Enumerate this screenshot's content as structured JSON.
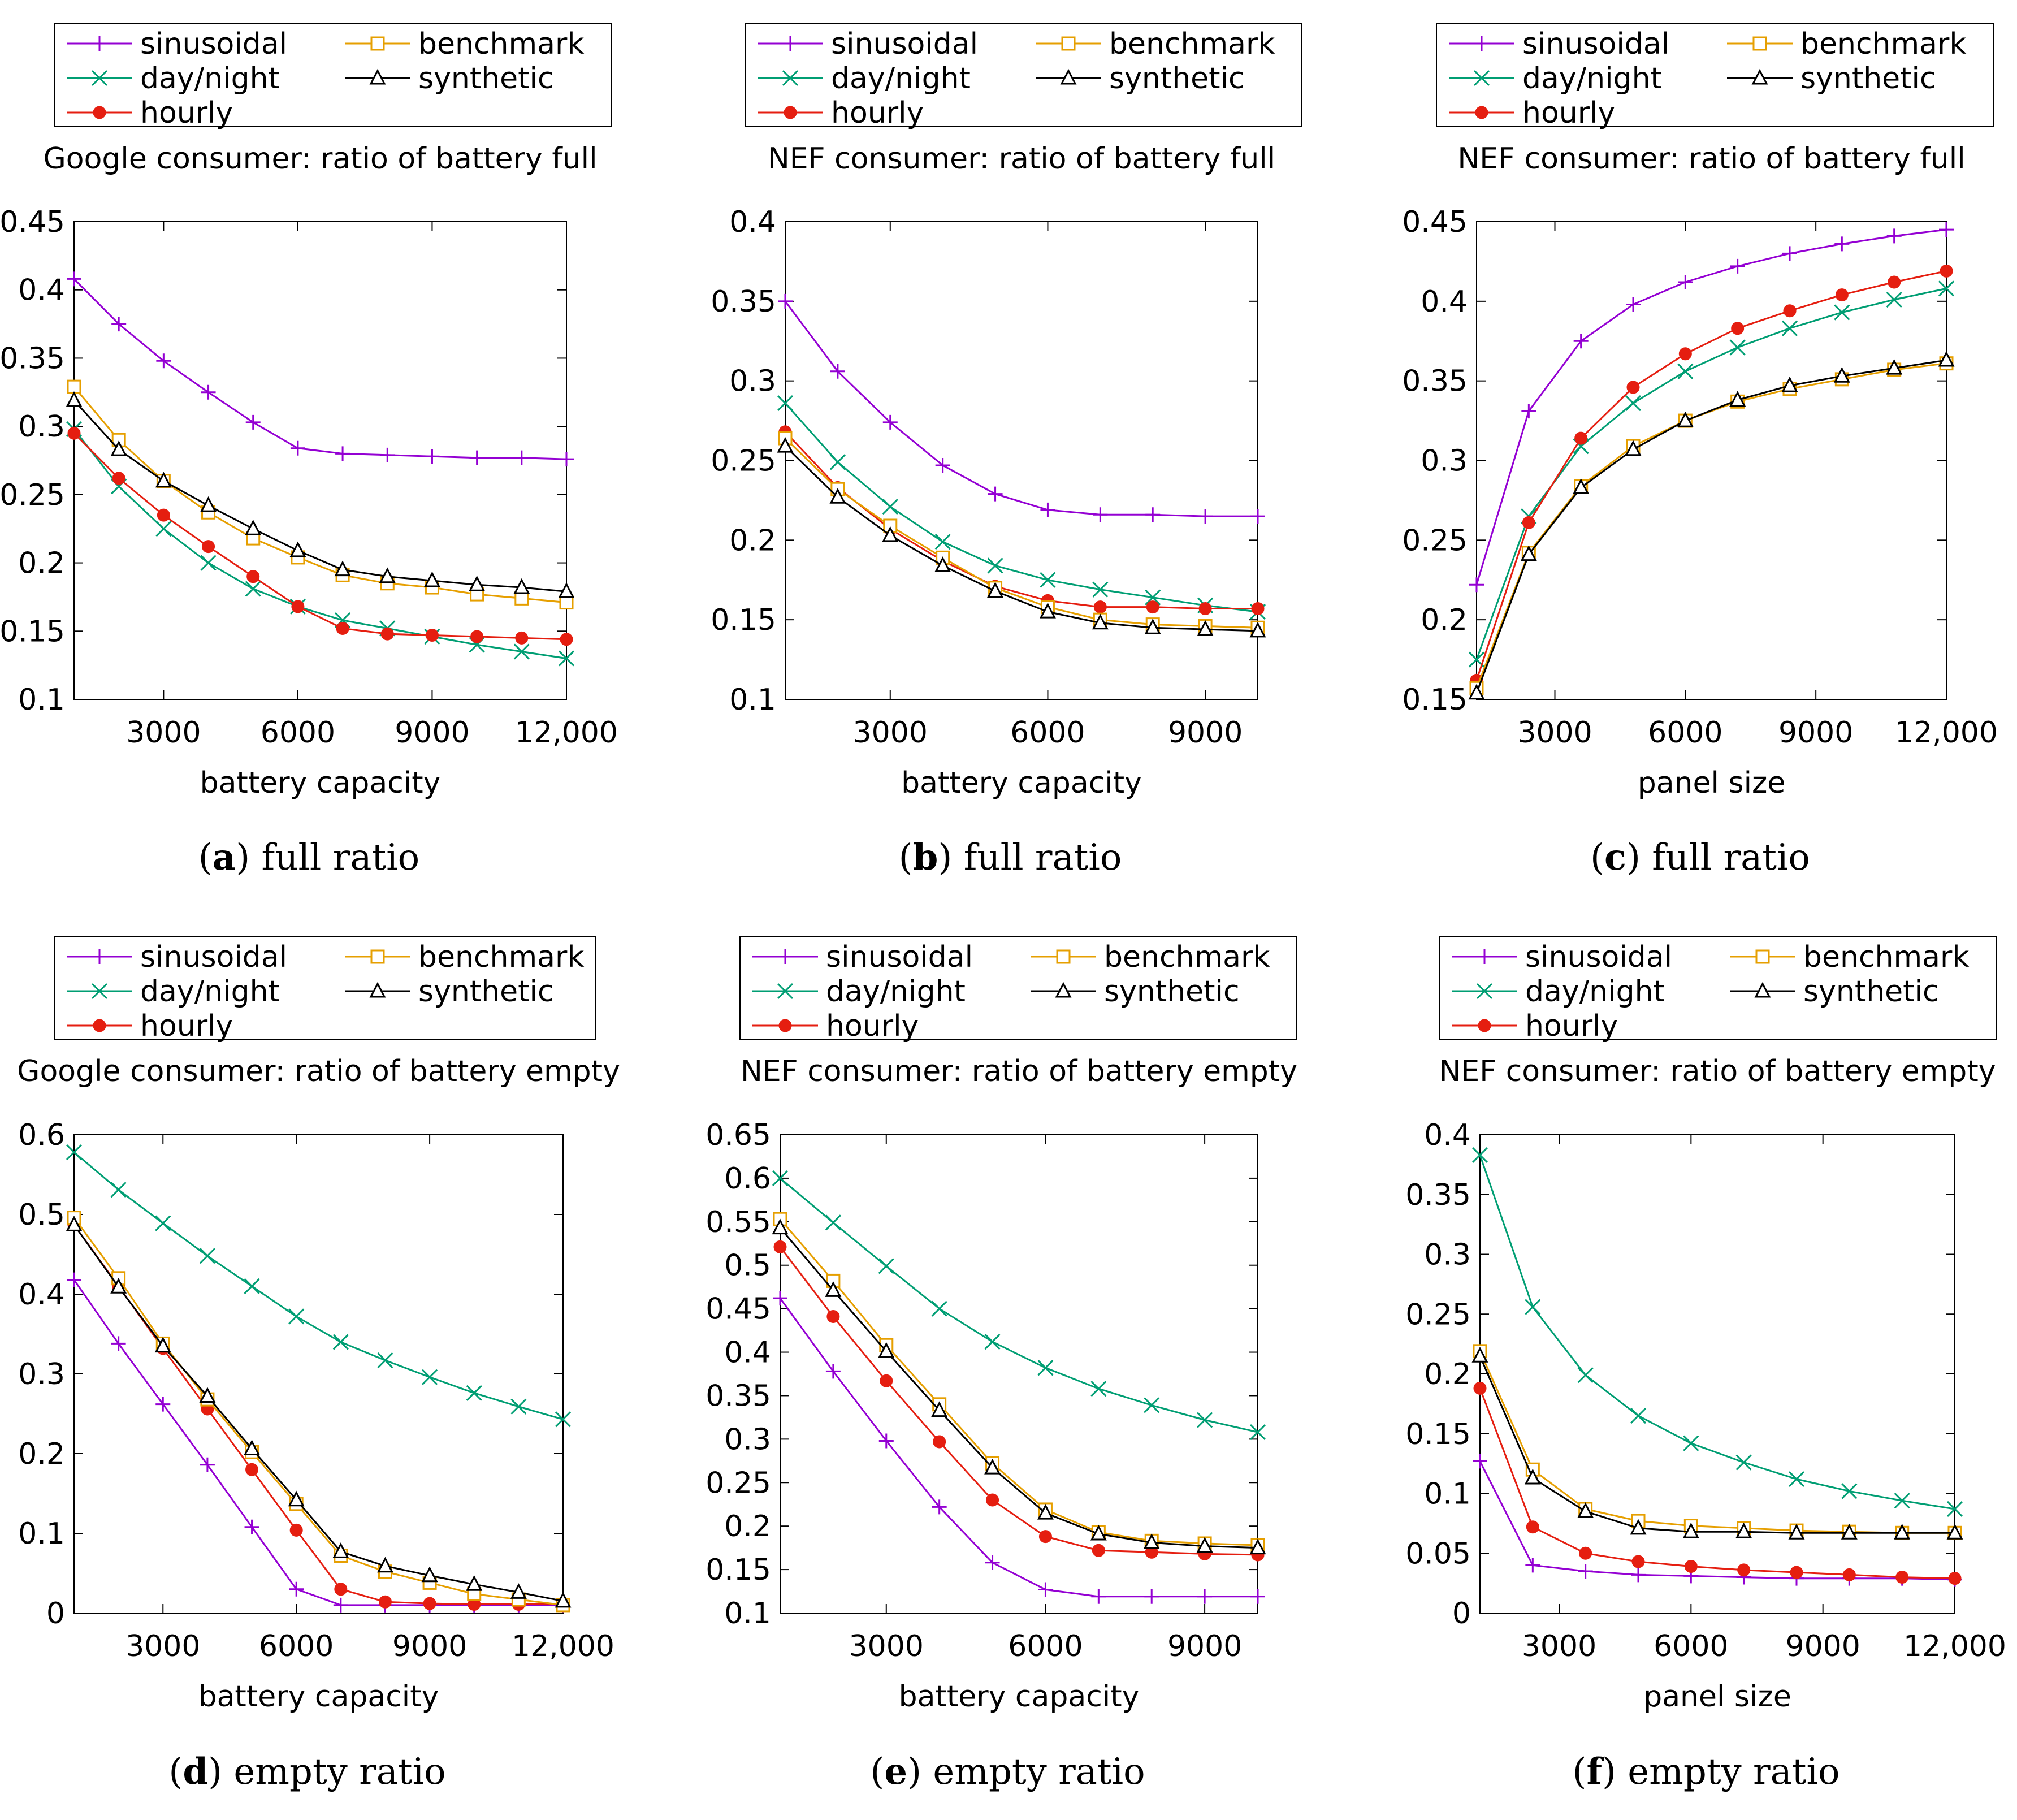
{
  "colors": {
    "sinusoidal": "#9400d3",
    "day/night": "#009e73",
    "hourly": "#e51e10",
    "benchmark": "#e69f00",
    "synthetic": "#000000"
  },
  "legend_order": [
    "sinusoidal",
    "benchmark",
    "day/night",
    "synthetic",
    "hourly"
  ],
  "chart_data": [
    {
      "type": "line",
      "title": "Google consumer: ratio of battery full",
      "xlabel": "battery capacity",
      "ylabel": "",
      "xlim": [
        1000,
        12000
      ],
      "ylim": [
        0.1,
        0.45
      ],
      "xticks": [
        3000,
        6000,
        9000,
        12000
      ],
      "xtick_labels": [
        "3000",
        "6000",
        "9000",
        "12,000"
      ],
      "yticks": [
        0.1,
        0.15,
        0.2,
        0.25,
        0.3,
        0.35,
        0.4,
        0.45
      ],
      "ytick_labels": [
        "0.1",
        "0.15",
        "0.2",
        "0.25",
        "0.3",
        "0.35",
        "0.4",
        "0.45"
      ],
      "caption_letter": "a",
      "caption_text": " full ratio",
      "legend": "top",
      "x": [
        1000,
        2000,
        3000,
        4000,
        5000,
        6000,
        7000,
        8000,
        9000,
        10000,
        11000,
        12000
      ],
      "series": [
        {
          "name": "sinusoidal",
          "values": [
            0.408,
            0.375,
            0.348,
            0.325,
            0.303,
            0.284,
            0.28,
            0.279,
            0.278,
            0.277,
            0.277,
            0.276
          ]
        },
        {
          "name": "day/night",
          "values": [
            0.298,
            0.256,
            0.225,
            0.2,
            0.181,
            0.168,
            0.158,
            0.152,
            0.146,
            0.14,
            0.135,
            0.13
          ]
        },
        {
          "name": "hourly",
          "values": [
            0.295,
            0.262,
            0.235,
            0.212,
            0.19,
            0.168,
            0.152,
            0.148,
            0.147,
            0.146,
            0.145,
            0.144
          ]
        },
        {
          "name": "benchmark",
          "values": [
            0.329,
            0.29,
            0.26,
            0.237,
            0.218,
            0.204,
            0.191,
            0.185,
            0.182,
            0.177,
            0.174,
            0.171
          ]
        },
        {
          "name": "synthetic",
          "values": [
            0.319,
            0.283,
            0.26,
            0.242,
            0.225,
            0.209,
            0.195,
            0.19,
            0.187,
            0.184,
            0.182,
            0.179
          ]
        }
      ]
    },
    {
      "type": "line",
      "title": "NEF consumer: ratio of battery full",
      "xlabel": "battery capacity",
      "ylabel": "",
      "xlim": [
        1000,
        10000
      ],
      "ylim": [
        0.1,
        0.4
      ],
      "xticks": [
        3000,
        6000,
        9000
      ],
      "xtick_labels": [
        "3000",
        "6000",
        "9000"
      ],
      "yticks": [
        0.1,
        0.15,
        0.2,
        0.25,
        0.3,
        0.35,
        0.4
      ],
      "ytick_labels": [
        "0.1",
        "0.15",
        "0.2",
        "0.25",
        "0.3",
        "0.35",
        "0.4"
      ],
      "caption_letter": "b",
      "caption_text": " full ratio",
      "legend": "top",
      "x": [
        1000,
        2000,
        3000,
        4000,
        5000,
        6000,
        7000,
        8000,
        9000,
        10000
      ],
      "series": [
        {
          "name": "sinusoidal",
          "values": [
            0.35,
            0.306,
            0.274,
            0.247,
            0.229,
            0.219,
            0.216,
            0.216,
            0.215,
            0.215
          ]
        },
        {
          "name": "day/night",
          "values": [
            0.286,
            0.249,
            0.221,
            0.199,
            0.184,
            0.175,
            0.169,
            0.164,
            0.159,
            0.155
          ]
        },
        {
          "name": "hourly",
          "values": [
            0.268,
            0.233,
            0.207,
            0.187,
            0.171,
            0.162,
            0.158,
            0.158,
            0.157,
            0.157
          ]
        },
        {
          "name": "benchmark",
          "values": [
            0.264,
            0.232,
            0.209,
            0.189,
            0.17,
            0.158,
            0.15,
            0.147,
            0.146,
            0.145
          ]
        },
        {
          "name": "synthetic",
          "values": [
            0.259,
            0.227,
            0.203,
            0.184,
            0.168,
            0.155,
            0.148,
            0.145,
            0.144,
            0.143
          ]
        }
      ]
    },
    {
      "type": "line",
      "title": "NEF consumer: ratio of battery full",
      "xlabel": "panel size",
      "ylabel": "",
      "xlim": [
        1200,
        12000
      ],
      "ylim": [
        0.15,
        0.45
      ],
      "xticks": [
        3000,
        6000,
        9000,
        12000
      ],
      "xtick_labels": [
        "3000",
        "6000",
        "9000",
        "12,000"
      ],
      "yticks": [
        0.15,
        0.2,
        0.25,
        0.3,
        0.35,
        0.4,
        0.45
      ],
      "ytick_labels": [
        "0.15",
        "0.2",
        "0.25",
        "0.3",
        "0.35",
        "0.4",
        "0.45"
      ],
      "caption_letter": "c",
      "caption_text": " full ratio",
      "legend": "top",
      "x": [
        1200,
        2400,
        3600,
        4800,
        6000,
        7200,
        8400,
        9600,
        10800,
        12000
      ],
      "series": [
        {
          "name": "sinusoidal",
          "values": [
            0.222,
            0.331,
            0.375,
            0.398,
            0.412,
            0.422,
            0.43,
            0.436,
            0.441,
            0.445
          ]
        },
        {
          "name": "day/night",
          "values": [
            0.175,
            0.265,
            0.309,
            0.336,
            0.356,
            0.371,
            0.383,
            0.393,
            0.401,
            0.408
          ]
        },
        {
          "name": "hourly",
          "values": [
            0.162,
            0.261,
            0.314,
            0.346,
            0.367,
            0.383,
            0.394,
            0.404,
            0.412,
            0.419
          ]
        },
        {
          "name": "benchmark",
          "values": [
            0.157,
            0.242,
            0.284,
            0.309,
            0.325,
            0.337,
            0.345,
            0.351,
            0.357,
            0.361
          ]
        },
        {
          "name": "synthetic",
          "values": [
            0.154,
            0.241,
            0.283,
            0.307,
            0.325,
            0.338,
            0.347,
            0.353,
            0.358,
            0.363
          ]
        }
      ]
    },
    {
      "type": "line",
      "title": "Google consumer: ratio of battery empty",
      "xlabel": "battery capacity",
      "ylabel": "",
      "xlim": [
        1000,
        12000
      ],
      "ylim": [
        0,
        0.6
      ],
      "xticks": [
        3000,
        6000,
        9000,
        12000
      ],
      "xtick_labels": [
        "3000",
        "6000",
        "9000",
        "12,000"
      ],
      "yticks": [
        0,
        0.1,
        0.2,
        0.3,
        0.4,
        0.5,
        0.6
      ],
      "ytick_labels": [
        "0",
        "0.1",
        "0.2",
        "0.3",
        "0.4",
        "0.5",
        "0.6"
      ],
      "caption_letter": "d",
      "caption_text": " empty ratio",
      "legend": "top",
      "x": [
        1000,
        2000,
        3000,
        4000,
        5000,
        6000,
        7000,
        8000,
        9000,
        10000,
        11000,
        12000
      ],
      "series": [
        {
          "name": "sinusoidal",
          "values": [
            0.418,
            0.338,
            0.262,
            0.186,
            0.108,
            0.03,
            0.01,
            0.01,
            0.01,
            0.01,
            0.01,
            0.01
          ]
        },
        {
          "name": "day/night",
          "values": [
            0.578,
            0.531,
            0.489,
            0.448,
            0.41,
            0.372,
            0.34,
            0.317,
            0.296,
            0.276,
            0.259,
            0.243
          ]
        },
        {
          "name": "hourly",
          "values": [
            0.487,
            0.41,
            0.332,
            0.256,
            0.18,
            0.104,
            0.03,
            0.014,
            0.012,
            0.011,
            0.011,
            0.011
          ]
        },
        {
          "name": "benchmark",
          "values": [
            0.496,
            0.42,
            0.338,
            0.268,
            0.202,
            0.137,
            0.072,
            0.052,
            0.038,
            0.024,
            0.017,
            0.01
          ]
        },
        {
          "name": "synthetic",
          "values": [
            0.487,
            0.409,
            0.335,
            0.272,
            0.206,
            0.142,
            0.077,
            0.059,
            0.047,
            0.036,
            0.026,
            0.015
          ]
        }
      ]
    },
    {
      "type": "line",
      "title": "NEF consumer: ratio of battery empty",
      "xlabel": "battery capacity",
      "ylabel": "",
      "xlim": [
        1000,
        10000
      ],
      "ylim": [
        0.1,
        0.65
      ],
      "xticks": [
        3000,
        6000,
        9000
      ],
      "xtick_labels": [
        "3000",
        "6000",
        "9000"
      ],
      "yticks": [
        0.1,
        0.15,
        0.2,
        0.25,
        0.3,
        0.35,
        0.4,
        0.45,
        0.5,
        0.55,
        0.6,
        0.65
      ],
      "ytick_labels": [
        "0.1",
        "0.15",
        "0.2",
        "0.25",
        "0.3",
        "0.35",
        "0.4",
        "0.45",
        "0.5",
        "0.55",
        "0.6",
        "0.65"
      ],
      "caption_letter": "e",
      "caption_text": " empty ratio",
      "legend": "top",
      "x": [
        1000,
        2000,
        3000,
        4000,
        5000,
        6000,
        7000,
        8000,
        9000,
        10000
      ],
      "series": [
        {
          "name": "sinusoidal",
          "values": [
            0.462,
            0.378,
            0.298,
            0.222,
            0.158,
            0.127,
            0.119,
            0.119,
            0.119,
            0.119
          ]
        },
        {
          "name": "day/night",
          "values": [
            0.6,
            0.549,
            0.499,
            0.45,
            0.412,
            0.382,
            0.358,
            0.339,
            0.322,
            0.308
          ]
        },
        {
          "name": "hourly",
          "values": [
            0.521,
            0.441,
            0.367,
            0.297,
            0.23,
            0.188,
            0.172,
            0.17,
            0.168,
            0.167
          ]
        },
        {
          "name": "benchmark",
          "values": [
            0.553,
            0.482,
            0.408,
            0.34,
            0.272,
            0.219,
            0.193,
            0.183,
            0.18,
            0.178
          ]
        },
        {
          "name": "synthetic",
          "values": [
            0.543,
            0.471,
            0.401,
            0.333,
            0.267,
            0.215,
            0.191,
            0.181,
            0.177,
            0.175
          ]
        }
      ]
    },
    {
      "type": "line",
      "title": "NEF consumer: ratio of battery empty",
      "xlabel": "panel size",
      "ylabel": "",
      "xlim": [
        1200,
        12000
      ],
      "ylim": [
        0,
        0.4
      ],
      "xticks": [
        3000,
        6000,
        9000,
        12000
      ],
      "xtick_labels": [
        "3000",
        "6000",
        "9000",
        "12,000"
      ],
      "yticks": [
        0,
        0.05,
        0.1,
        0.15,
        0.2,
        0.25,
        0.3,
        0.35,
        0.4
      ],
      "ytick_labels": [
        "0",
        "0.05",
        "0.1",
        "0.15",
        "0.2",
        "0.25",
        "0.3",
        "0.35",
        "0.4"
      ],
      "caption_letter": "f",
      "caption_text": " empty ratio",
      "legend": "top",
      "x": [
        1200,
        2400,
        3600,
        4800,
        6000,
        7200,
        8400,
        9600,
        10800,
        12000
      ],
      "series": [
        {
          "name": "sinusoidal",
          "values": [
            0.127,
            0.04,
            0.035,
            0.032,
            0.031,
            0.03,
            0.029,
            0.029,
            0.029,
            0.028
          ]
        },
        {
          "name": "day/night",
          "values": [
            0.383,
            0.256,
            0.199,
            0.165,
            0.142,
            0.126,
            0.112,
            0.102,
            0.094,
            0.087
          ]
        },
        {
          "name": "hourly",
          "values": [
            0.188,
            0.072,
            0.05,
            0.043,
            0.039,
            0.036,
            0.034,
            0.032,
            0.03,
            0.029
          ]
        },
        {
          "name": "benchmark",
          "values": [
            0.219,
            0.12,
            0.087,
            0.077,
            0.073,
            0.071,
            0.069,
            0.068,
            0.067,
            0.067
          ]
        },
        {
          "name": "synthetic",
          "values": [
            0.215,
            0.113,
            0.085,
            0.071,
            0.068,
            0.068,
            0.067,
            0.067,
            0.067,
            0.067
          ]
        }
      ]
    }
  ]
}
